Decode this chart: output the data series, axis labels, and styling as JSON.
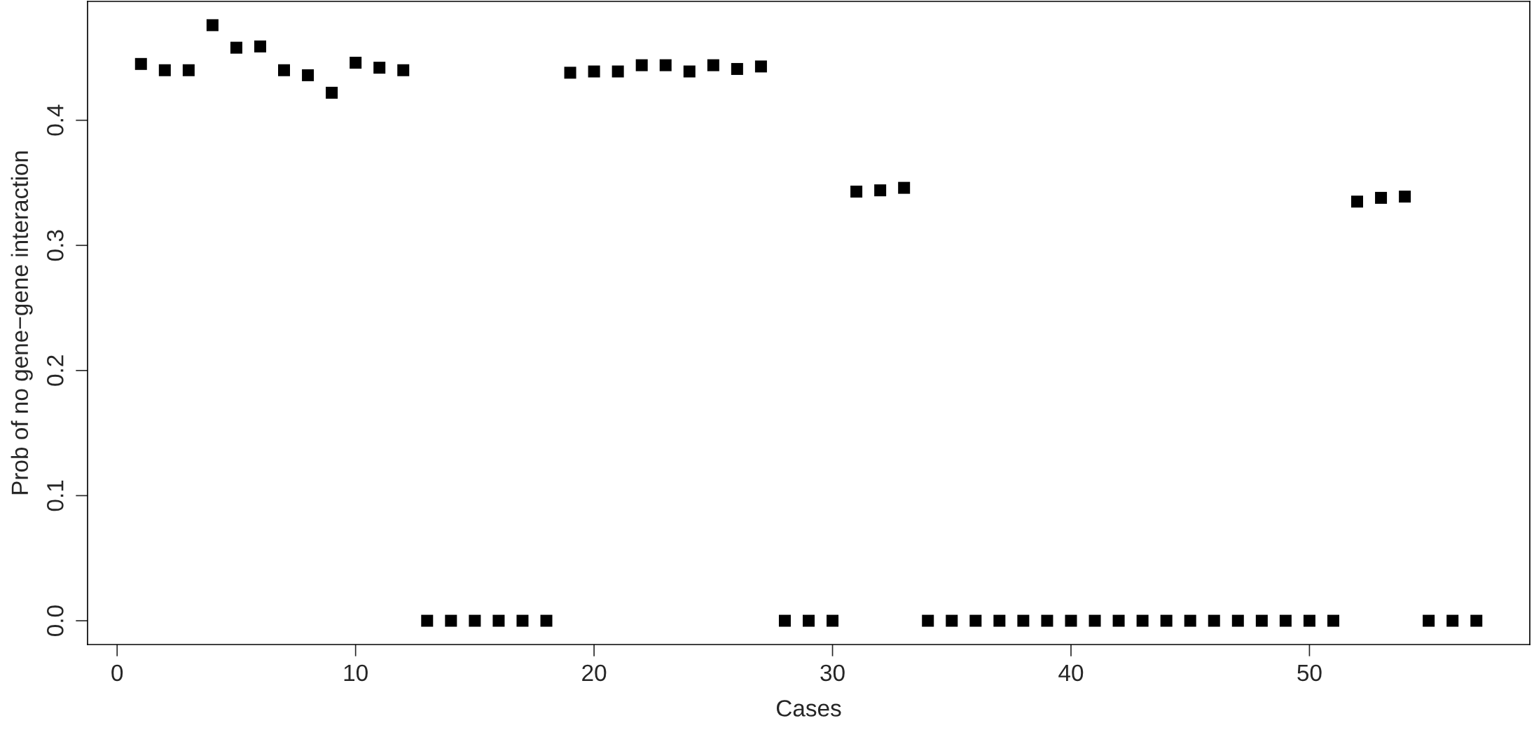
{
  "chart_data": {
    "type": "scatter",
    "xlabel": "Cases",
    "ylabel": "Prob of no gene−gene interaction",
    "x": [
      1,
      2,
      3,
      4,
      5,
      6,
      7,
      8,
      9,
      10,
      11,
      12,
      13,
      14,
      15,
      16,
      17,
      18,
      19,
      20,
      21,
      22,
      23,
      24,
      25,
      26,
      27,
      28,
      29,
      30,
      31,
      32,
      33,
      34,
      35,
      36,
      37,
      38,
      39,
      40,
      41,
      42,
      43,
      44,
      45,
      46,
      47,
      48,
      49,
      50,
      51,
      52,
      53,
      54,
      55,
      56,
      57
    ],
    "values": [
      0.445,
      0.44,
      0.44,
      0.476,
      0.458,
      0.459,
      0.44,
      0.436,
      0.422,
      0.446,
      0.442,
      0.44,
      0,
      0,
      0,
      0,
      0,
      0,
      0.438,
      0.439,
      0.439,
      0.444,
      0.444,
      0.439,
      0.444,
      0.441,
      0.443,
      0,
      0,
      0,
      0.343,
      0.344,
      0.346,
      0,
      0,
      0,
      0,
      0,
      0,
      0,
      0,
      0,
      0,
      0,
      0,
      0,
      0,
      0,
      0,
      0,
      0,
      0.335,
      0.338,
      0.339,
      0,
      0,
      0
    ],
    "color": "#000000",
    "marker": "square",
    "xlim": [
      -1.24,
      59.24
    ],
    "ylim": [
      -0.019,
      0.495
    ],
    "xticks": [
      0,
      10,
      20,
      30,
      40,
      50
    ],
    "yticks": [
      {
        "value": 0,
        "label": "0.0"
      },
      0.1,
      0.2,
      0.3,
      0.4
    ],
    "grid": false,
    "legend": false
  }
}
